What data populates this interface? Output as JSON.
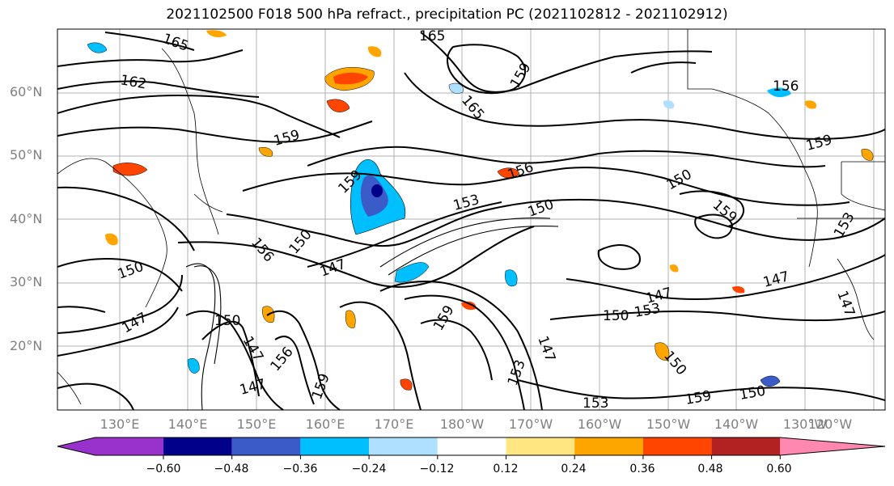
{
  "title": "2021102500 F018 500 hPa refract., precipitation PC (2021102812 - 2021102912)",
  "lat_labels": [
    "60°N",
    "50°N",
    "40°N",
    "30°N",
    "20°N"
  ],
  "lon_labels": [
    "130°E",
    "140°E",
    "150°E",
    "160°E",
    "170°E",
    "180°W",
    "170°W",
    "160°W",
    "150°W",
    "140°W",
    "130°W",
    "120°W"
  ],
  "colorbar": {
    "colors": [
      "#9932cc",
      "#00008b",
      "#3a5bc8",
      "#00bfff",
      "#b0e0ff",
      "#ffffff",
      "#ffe680",
      "#ffa500",
      "#ff4500",
      "#b22222",
      "#ff88b0"
    ],
    "ticks": [
      "−0.60",
      "−0.48",
      "−0.36",
      "−0.24",
      "−0.12",
      "0.12",
      "0.24",
      "0.36",
      "0.48",
      "0.60"
    ]
  },
  "contour_labels": [
    "165",
    "162",
    "165",
    "165",
    "156",
    "159",
    "159",
    "159",
    "156",
    "150",
    "153",
    "150",
    "159",
    "159",
    "156",
    "150",
    "147",
    "150",
    "147",
    "153",
    "150",
    "153",
    "147",
    "150",
    "147",
    "159",
    "156",
    "147",
    "153",
    "150",
    "153",
    "159",
    "150",
    "147",
    "159",
    "147",
    "147"
  ]
}
